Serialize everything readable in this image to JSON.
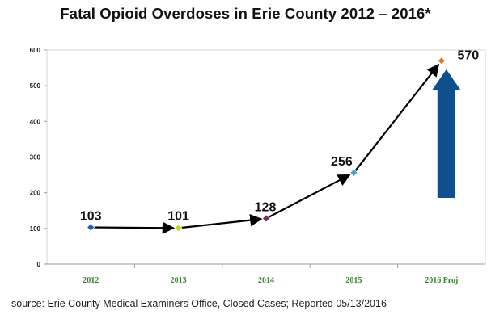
{
  "chart_data": {
    "type": "line",
    "title": "Fatal Opioid Overdoses in Erie County 2012 – 2016*",
    "categories": [
      "2012",
      "2013",
      "2014",
      "2015",
      "2016 Proj"
    ],
    "values": [
      103,
      101,
      128,
      256,
      570
    ],
    "data_labels": [
      "103",
      "101",
      "128",
      "256",
      "570"
    ],
    "point_colors": [
      "#1f5fa8",
      "#c8d62a",
      "#7b2d5a",
      "#4aa3c0",
      "#d9782b"
    ],
    "ylim": [
      0,
      600
    ],
    "yticks": [
      "0",
      "100",
      "200",
      "300",
      "400",
      "500",
      "600"
    ],
    "grid": false,
    "legend": "none",
    "arrow_color": "#0f4f8e",
    "category_label_color": "#3a7f2f",
    "source": "source: Erie County Medical Examiners Office, Closed Cases; Reported 05/13/2016"
  }
}
